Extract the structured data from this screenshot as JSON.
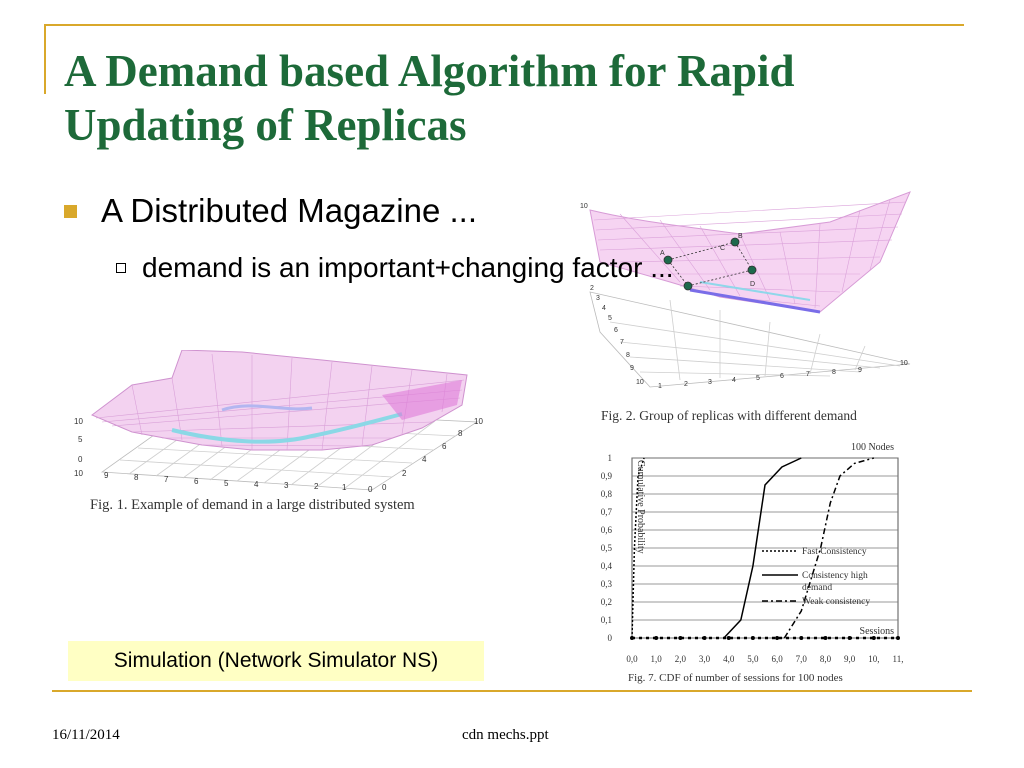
{
  "slide": {
    "title_line1": "A Demand based Algorithm for Rapid",
    "title_line2": "Updating of Replicas",
    "bullet1": "A Distributed Magazine ...",
    "bullet2": "demand is an important+changing factor ...",
    "sim_label": "Simulation (Network Simulator NS)"
  },
  "figures": {
    "fig1_caption": "Fig. 1. Example of demand in a large distributed system",
    "fig2_caption": "Fig. 2. Group of replicas with different demand",
    "fig7_caption": "Fig. 7. CDF of number of sessions for 100 nodes",
    "fig1_z_ticks": [
      "10",
      "5",
      "0"
    ],
    "fig1_x_ticks": [
      "10",
      "9",
      "8",
      "7",
      "6",
      "5",
      "4",
      "3",
      "2",
      "1",
      "0"
    ],
    "fig1_y_ticks": [
      "0",
      "2",
      "4",
      "6",
      "8",
      "10"
    ],
    "fig2_x_ticks": [
      "1",
      "2",
      "3",
      "4",
      "5",
      "6",
      "7",
      "8",
      "9",
      "10"
    ],
    "fig2_y_ticks": [
      "10",
      "9",
      "8",
      "7",
      "6",
      "5",
      "4",
      "3",
      "2"
    ],
    "fig2_node_labels": [
      "A",
      "B",
      "C",
      "D"
    ]
  },
  "chart_data": {
    "type": "line",
    "title": "100 Nodes",
    "ylabel": "Cumulative Probability",
    "xlabel": "Sessions",
    "y_ticks": [
      "0",
      "0,1",
      "0,2",
      "0,3",
      "0,4",
      "0,5",
      "0,6",
      "0,7",
      "0,8",
      "0,9",
      "1"
    ],
    "x_ticks": [
      "0,0",
      "1,0",
      "2,0",
      "3,0",
      "4,0",
      "5,0",
      "6,0",
      "7,0",
      "8,0",
      "9,0",
      "10,",
      "11,"
    ],
    "ylim": [
      0,
      1
    ],
    "xlim": [
      0,
      11
    ],
    "grid": true,
    "legend": "right",
    "series": [
      {
        "name": "Fast Consistency",
        "style": "dotted",
        "x": [
          0.0,
          0.1,
          0.25,
          0.5
        ],
        "y": [
          0.0,
          0.5,
          0.9,
          1.0
        ]
      },
      {
        "name": "Consistency high demand",
        "style": "solid",
        "x": [
          3.8,
          4.5,
          5.0,
          5.5,
          6.2,
          7.0
        ],
        "y": [
          0.0,
          0.1,
          0.4,
          0.85,
          0.95,
          1.0
        ]
      },
      {
        "name": "Weak consistency",
        "style": "dashdot",
        "x": [
          6.3,
          7.0,
          7.8,
          8.2,
          8.6,
          9.2,
          10.0
        ],
        "y": [
          0.0,
          0.15,
          0.5,
          0.75,
          0.9,
          0.97,
          1.0
        ]
      }
    ]
  },
  "footer": {
    "date": "16/11/2014",
    "filename": "cdn mechs.ppt"
  }
}
